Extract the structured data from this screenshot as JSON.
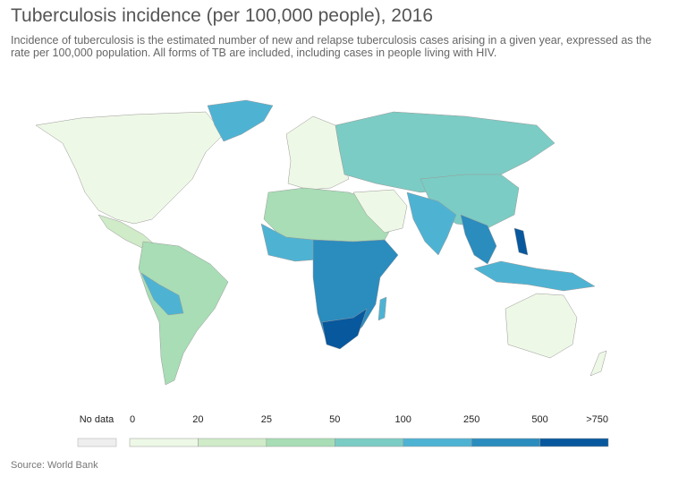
{
  "title": "Tuberculosis incidence (per 100,000 people), 2016",
  "subtitle": "Incidence of tuberculosis is the estimated number of new and relapse tuberculosis cases arising in a given year, expressed as the rate per 100,000 population. All forms of TB are included, including cases in people living with HIV.",
  "legend": {
    "no_data": "No data",
    "no_data_color": "#eeeeee",
    "labels": [
      "0",
      "20",
      "25",
      "50",
      "100",
      "250",
      "500",
      ">750"
    ],
    "colors": [
      "#eef8e6",
      "#cfebc7",
      "#a8ddb5",
      "#7bccc4",
      "#4eb3d3",
      "#2b8cbe",
      "#08589e"
    ]
  },
  "source": "Source: World Bank"
}
